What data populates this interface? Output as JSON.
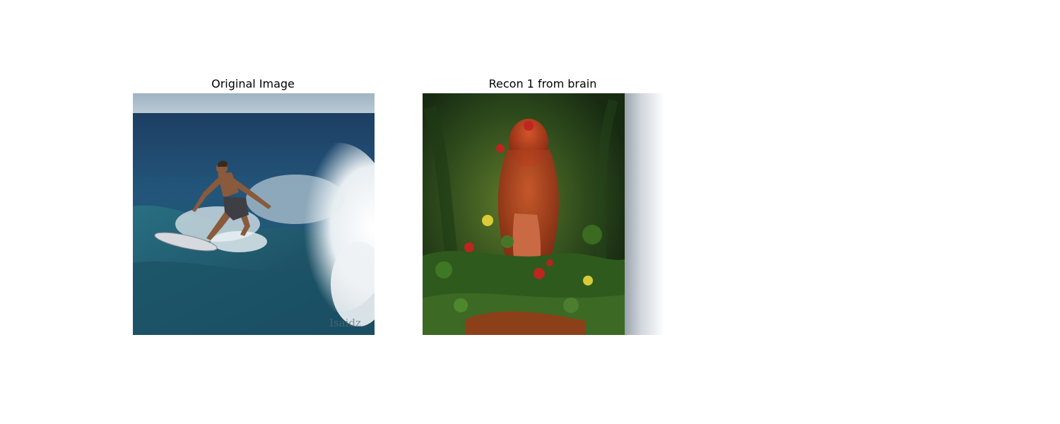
{
  "figure": {
    "panels": [
      {
        "title": "Original Image",
        "content": "photo of a surfer riding a breaking wave",
        "watermark": "Isaidz"
      },
      {
        "title": "Recon 1 from brain",
        "content": "painting of a red-haired woman among green foliage and flowers"
      }
    ]
  }
}
